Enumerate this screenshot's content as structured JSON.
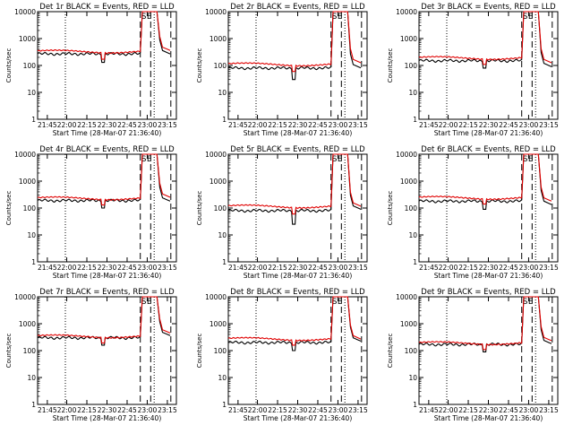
{
  "chart_data": [
    {
      "type": "line",
      "title": "Det 1r BLACK = Events, RED = LLD",
      "xlabel": "Start Time (28-Mar-07 21:36:40)",
      "ylabel": "Counts/sec",
      "yscale": "log",
      "ylim": [
        1,
        10000
      ],
      "xtick_labels": [
        "21:45",
        "22:00",
        "22:15",
        "22:30",
        "22:45",
        "23:00",
        "23:15"
      ],
      "ytick_labels": [
        "1",
        "10",
        "100",
        "1000",
        "10000"
      ],
      "markers": [
        {
          "label": "S",
          "style": "dashed"
        },
        {
          "label": "E",
          "style": "dashed"
        }
      ],
      "series": [
        {
          "color": "#000000",
          "baseline": 270,
          "dip": 130,
          "peak": 10000,
          "tail": 300
        },
        {
          "color": "#e00000",
          "baseline": 330,
          "dip": 170,
          "peak": 10000,
          "tail": 400
        }
      ]
    },
    {
      "type": "line",
      "title": "Det 2r BLACK = Events, RED = LLD",
      "xlabel": "Start Time (28-Mar-07 21:36:40)",
      "ylabel": "Counts/sec",
      "yscale": "log",
      "ylim": [
        1,
        10000
      ],
      "xtick_labels": [
        "21:45",
        "22:00",
        "22:15",
        "22:30",
        "22:45",
        "23:00",
        "23:15"
      ],
      "ytick_labels": [
        "1",
        "10",
        "100",
        "1000",
        "10000"
      ],
      "markers": [
        {
          "label": "S",
          "style": "dashed"
        },
        {
          "label": "E",
          "style": "dashed"
        }
      ],
      "series": [
        {
          "color": "#000000",
          "baseline": 80,
          "dip": 30,
          "peak": 10000,
          "tail": 90
        },
        {
          "color": "#e00000",
          "baseline": 110,
          "dip": 60,
          "peak": 10000,
          "tail": 140
        }
      ]
    },
    {
      "type": "line",
      "title": "Det 3r BLACK = Events, RED = LLD",
      "xlabel": "Start Time (28-Mar-07 21:36:40)",
      "ylabel": "Counts/sec",
      "yscale": "log",
      "ylim": [
        1,
        10000
      ],
      "xtick_labels": [
        "21:45",
        "22:00",
        "22:15",
        "22:30",
        "22:45",
        "23:00",
        "23:15"
      ],
      "ytick_labels": [
        "1",
        "10",
        "100",
        "1000",
        "10000"
      ],
      "markers": [
        {
          "label": "S",
          "style": "dashed"
        },
        {
          "label": "E",
          "style": "dashed"
        }
      ],
      "series": [
        {
          "color": "#000000",
          "baseline": 150,
          "dip": 80,
          "peak": 10000,
          "tail": 100
        },
        {
          "color": "#e00000",
          "baseline": 190,
          "dip": 110,
          "peak": 10000,
          "tail": 140
        }
      ]
    },
    {
      "type": "line",
      "title": "Det 4r BLACK = Events, RED = LLD",
      "xlabel": "Start Time (28-Mar-07 21:36:40)",
      "ylabel": "Counts/sec",
      "yscale": "log",
      "ylim": [
        1,
        10000
      ],
      "xtick_labels": [
        "21:45",
        "22:00",
        "22:15",
        "22:30",
        "22:45",
        "23:00",
        "23:15"
      ],
      "ytick_labels": [
        "1",
        "10",
        "100",
        "1000",
        "10000"
      ],
      "markers": [
        {
          "label": "S",
          "style": "dashed"
        },
        {
          "label": "E",
          "style": "dashed"
        }
      ],
      "series": [
        {
          "color": "#000000",
          "baseline": 190,
          "dip": 100,
          "peak": 10000,
          "tail": 200
        },
        {
          "color": "#e00000",
          "baseline": 230,
          "dip": 130,
          "peak": 10000,
          "tail": 280
        }
      ]
    },
    {
      "type": "line",
      "title": "Det 5r BLACK = Events, RED = LLD",
      "xlabel": "Start Time (28-Mar-07 21:36:40)",
      "ylabel": "Counts/sec",
      "yscale": "log",
      "ylim": [
        1,
        10000
      ],
      "xtick_labels": [
        "21:45",
        "22:00",
        "22:15",
        "22:30",
        "22:45",
        "23:00",
        "23:15"
      ],
      "ytick_labels": [
        "1",
        "10",
        "100",
        "1000",
        "10000"
      ],
      "markers": [
        {
          "label": "S",
          "style": "dashed"
        },
        {
          "label": "E",
          "style": "dashed"
        }
      ],
      "series": [
        {
          "color": "#000000",
          "baseline": 80,
          "dip": 25,
          "peak": 10000,
          "tail": 100
        },
        {
          "color": "#e00000",
          "baseline": 115,
          "dip": 60,
          "peak": 10000,
          "tail": 130
        }
      ]
    },
    {
      "type": "line",
      "title": "Det 6r BLACK = Events, RED = LLD",
      "xlabel": "Start Time (28-Mar-07 21:36:40)",
      "ylabel": "Counts/sec",
      "yscale": "log",
      "ylim": [
        1,
        10000
      ],
      "xtick_labels": [
        "21:45",
        "22:00",
        "22:15",
        "22:30",
        "22:45",
        "23:00",
        "23:15"
      ],
      "ytick_labels": [
        "1",
        "10",
        "100",
        "1000",
        "10000"
      ],
      "markers": [
        {
          "label": "S",
          "style": "dashed"
        },
        {
          "label": "E",
          "style": "dashed"
        }
      ],
      "series": [
        {
          "color": "#000000",
          "baseline": 180,
          "dip": 90,
          "peak": 10000,
          "tail": 150
        },
        {
          "color": "#e00000",
          "baseline": 240,
          "dip": 140,
          "peak": 10000,
          "tail": 200
        }
      ]
    },
    {
      "type": "line",
      "title": "Det 7r BLACK = Events, RED = LLD",
      "xlabel": "Start Time (28-Mar-07 21:36:40)",
      "ylabel": "Counts/sec",
      "yscale": "log",
      "ylim": [
        1,
        10000
      ],
      "xtick_labels": [
        "21:45",
        "22:00",
        "22:15",
        "22:30",
        "22:45",
        "23:00",
        "23:15"
      ],
      "ytick_labels": [
        "1",
        "10",
        "100",
        "1000",
        "10000"
      ],
      "markers": [
        {
          "label": "S",
          "style": "dashed"
        },
        {
          "label": "E",
          "style": "dashed"
        }
      ],
      "series": [
        {
          "color": "#000000",
          "baseline": 300,
          "dip": 160,
          "peak": 10000,
          "tail": 400
        },
        {
          "color": "#e00000",
          "baseline": 340,
          "dip": 190,
          "peak": 10000,
          "tail": 500
        }
      ]
    },
    {
      "type": "line",
      "title": "Det 8r BLACK = Events, RED = LLD",
      "xlabel": "Start Time (28-Mar-07 21:36:40)",
      "ylabel": "Counts/sec",
      "yscale": "log",
      "ylim": [
        1,
        10000
      ],
      "xtick_labels": [
        "21:45",
        "22:00",
        "22:15",
        "22:30",
        "22:45",
        "23:00",
        "23:15"
      ],
      "ytick_labels": [
        "1",
        "10",
        "100",
        "1000",
        "10000"
      ],
      "markers": [
        {
          "label": "S",
          "style": "dashed"
        },
        {
          "label": "E",
          "style": "dashed"
        }
      ],
      "series": [
        {
          "color": "#000000",
          "baseline": 200,
          "dip": 100,
          "peak": 10000,
          "tail": 250
        },
        {
          "color": "#e00000",
          "baseline": 270,
          "dip": 160,
          "peak": 10000,
          "tail": 300
        }
      ]
    },
    {
      "type": "line",
      "title": "Det 9r BLACK = Events, RED = LLD",
      "xlabel": "Start Time (28-Mar-07 21:36:40)",
      "ylabel": "Counts/sec",
      "yscale": "log",
      "ylim": [
        1,
        10000
      ],
      "xtick_labels": [
        "21:45",
        "22:00",
        "22:15",
        "22:30",
        "22:45",
        "23:00",
        "23:15"
      ],
      "ytick_labels": [
        "1",
        "10",
        "100",
        "1000",
        "10000"
      ],
      "markers": [
        {
          "label": "S",
          "style": "dashed"
        },
        {
          "label": "E",
          "style": "dashed"
        }
      ],
      "series": [
        {
          "color": "#000000",
          "baseline": 170,
          "dip": 90,
          "peak": 10000,
          "tail": 200
        },
        {
          "color": "#e00000",
          "baseline": 190,
          "dip": 110,
          "peak": 10000,
          "tail": 260
        }
      ]
    }
  ]
}
